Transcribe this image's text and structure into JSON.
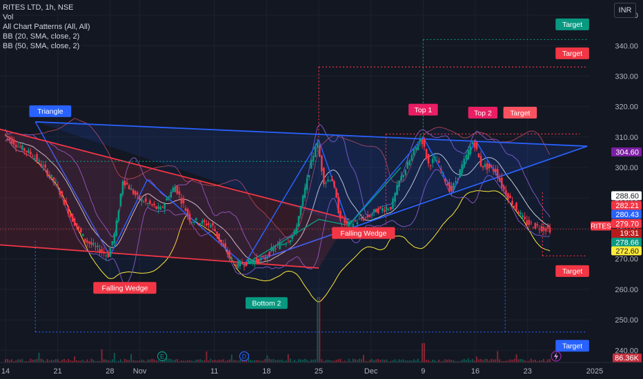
{
  "header": {
    "symbol_line": "RITES LTD, 1h, NSE",
    "indicators": [
      "Vol",
      "All Chart Patterns (All, All)",
      "BB (20, SMA, close, 2)",
      "BB (50, SMA, close, 2)"
    ],
    "currency_button": "INR"
  },
  "colors": {
    "background": "#131722",
    "up": "#089981",
    "down": "#f23645",
    "blue": "#2962ff",
    "bb_mid": "#ffffff",
    "bb_outer": "#ffeb3b",
    "pattern_red": "#f23645",
    "pattern_blue": "#2962ff",
    "target_green": "#089981",
    "target_red": "#f23645",
    "target_blue": "#2962ff",
    "top_pink": "#e91e63",
    "triangle_blue": "#2962ff"
  },
  "chart_data": {
    "type": "candlestick",
    "symbol": "RITES",
    "ylim": [
      236,
      355
    ],
    "y_ticks": [
      240,
      250,
      260,
      270,
      280,
      290,
      300,
      310,
      320,
      330,
      340,
      350
    ],
    "y_tick_labels": [
      "240.00",
      "250.00",
      "260.00",
      "270.00",
      "280.00",
      "290.00",
      "300.00",
      "310.00",
      "320.00",
      "330.00",
      "340.00",
      "350.00"
    ],
    "x_ticks": [
      {
        "label": "14",
        "date": "2024-10-14"
      },
      {
        "label": "21",
        "date": "2024-10-21"
      },
      {
        "label": "28",
        "date": "2024-10-28"
      },
      {
        "label": "Nov",
        "date": "2024-11-01"
      },
      {
        "label": "11",
        "date": "2024-11-11"
      },
      {
        "label": "18",
        "date": "2024-11-18"
      },
      {
        "label": "25",
        "date": "2024-11-25"
      },
      {
        "label": "Dec",
        "date": "2024-12-02"
      },
      {
        "label": "9",
        "date": "2024-12-09"
      },
      {
        "label": "16",
        "date": "2024-12-16"
      },
      {
        "label": "23",
        "date": "2024-12-23"
      },
      {
        "label": "2025",
        "date": "2025-01-01"
      }
    ],
    "price_path": [
      [
        "2024-10-14",
        311
      ],
      [
        "2024-10-16",
        307
      ],
      [
        "2024-10-18",
        304
      ],
      [
        "2024-10-21",
        295
      ],
      [
        "2024-10-23",
        284
      ],
      [
        "2024-10-25",
        276
      ],
      [
        "2024-10-28",
        271
      ],
      [
        "2024-10-29",
        279
      ],
      [
        "2024-10-30",
        296
      ],
      [
        "2024-11-01",
        290
      ],
      [
        "2024-11-04",
        286
      ],
      [
        "2024-11-06",
        294
      ],
      [
        "2024-11-08",
        283
      ],
      [
        "2024-11-11",
        281
      ],
      [
        "2024-11-12",
        276
      ],
      [
        "2024-11-14",
        268
      ],
      [
        "2024-11-18",
        270
      ],
      [
        "2024-11-19",
        273
      ],
      [
        "2024-11-21",
        276
      ],
      [
        "2024-11-22",
        278
      ],
      [
        "2024-11-25",
        309
      ],
      [
        "2024-11-26",
        295
      ],
      [
        "2024-11-27",
        297
      ],
      [
        "2024-11-28",
        285
      ],
      [
        "2024-11-29",
        281
      ],
      [
        "2024-12-02",
        284
      ],
      [
        "2024-12-03",
        286
      ],
      [
        "2024-12-05",
        287
      ],
      [
        "2024-12-06",
        295
      ],
      [
        "2024-12-09",
        310
      ],
      [
        "2024-12-10",
        301
      ],
      [
        "2024-12-11",
        303
      ],
      [
        "2024-12-12",
        297
      ],
      [
        "2024-12-13",
        292
      ],
      [
        "2024-12-16",
        309
      ],
      [
        "2024-12-17",
        301
      ],
      [
        "2024-12-18",
        300
      ],
      [
        "2024-12-19",
        299
      ],
      [
        "2024-12-20",
        293
      ],
      [
        "2024-12-23",
        282
      ],
      [
        "2024-12-24",
        281
      ],
      [
        "2024-12-26",
        279.7
      ]
    ],
    "volume_markers": [
      {
        "date": "2024-11-25",
        "label": "spike"
      },
      {
        "date": "2024-12-09",
        "label": "spike"
      }
    ],
    "patterns": [
      {
        "name": "Triangle",
        "kind": "label"
      },
      {
        "name": "Falling Wedge",
        "kind": "label"
      },
      {
        "name": "Bottom 2",
        "kind": "label"
      },
      {
        "name": "Falling Wedge",
        "kind": "label"
      },
      {
        "name": "Top 1",
        "kind": "label"
      },
      {
        "name": "Top 2",
        "kind": "label"
      },
      {
        "name": "Target",
        "kind": "target",
        "level": 342
      },
      {
        "name": "Target",
        "kind": "target",
        "level": 333
      },
      {
        "name": "Target",
        "kind": "target",
        "level": 310
      },
      {
        "name": "Target",
        "kind": "target",
        "level": 270
      },
      {
        "name": "Target",
        "kind": "target",
        "level": 246
      }
    ],
    "price_labels": [
      {
        "value": 304.6,
        "text": "304.60",
        "color": "#7b1fa2"
      },
      {
        "value": 288.6,
        "text": "288.60",
        "color": "#ffffff"
      },
      {
        "value": 282.21,
        "text": "282.21",
        "color": "#f23645"
      },
      {
        "value": 280.43,
        "text": "280.43",
        "color": "#2962ff"
      },
      {
        "value": 279.7,
        "text": "279.70",
        "color": "#f23645"
      },
      {
        "value": 278.66,
        "text": "278.66",
        "color": "#089981"
      },
      {
        "value": 272.6,
        "text": "272.60",
        "color": "#ffeb3b"
      }
    ],
    "last_price_tag": {
      "symbol": "RITES",
      "price": "279.70",
      "countdown": "19:31"
    },
    "volume_label": "86.36K",
    "events": [
      {
        "date": "2024-11-04",
        "label": "E"
      },
      {
        "date": "2024-11-15",
        "label": "D"
      }
    ]
  }
}
